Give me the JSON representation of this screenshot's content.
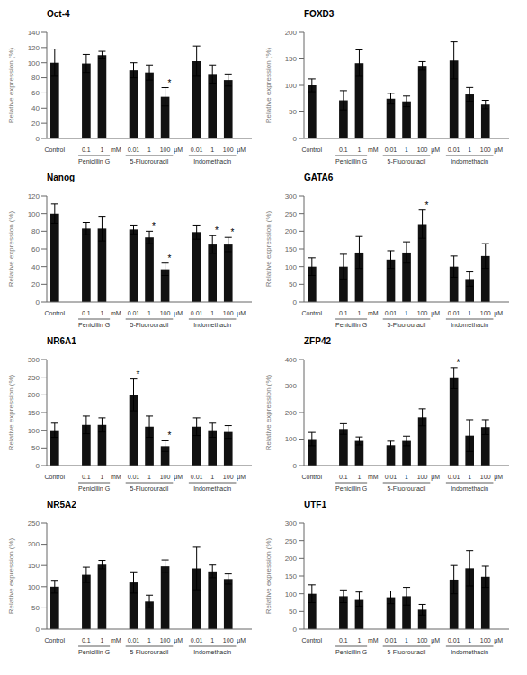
{
  "chart_data": [
    {
      "type": "bar",
      "title": "Oct-4",
      "ylabel": "Relative expression (%)",
      "categories": [
        "Control",
        "0.1",
        "1",
        "0.01",
        "1",
        "100",
        "0.01",
        "1",
        "100"
      ],
      "values": [
        100,
        99,
        110,
        90,
        87,
        55,
        102,
        85,
        77
      ],
      "errors": [
        18,
        12,
        5,
        10,
        10,
        12,
        20,
        12,
        8
      ],
      "annotations": [
        {
          "text": "*",
          "index": 5
        }
      ],
      "groups": [
        {
          "label": "Penicillin G",
          "unit": "mM",
          "start": 1,
          "end": 2
        },
        {
          "label": "5-Fluorouracil",
          "unit": "μM",
          "start": 3,
          "end": 5
        },
        {
          "label": "Indomethacin",
          "unit": "μM",
          "start": 6,
          "end": 8
        }
      ],
      "ylim": [
        0,
        140
      ],
      "yticks": [
        0,
        20,
        40,
        60,
        80,
        100,
        120,
        140
      ],
      "color": "#111111",
      "grid": false
    },
    {
      "type": "bar",
      "title": "FOXD3",
      "ylabel": "Relative expression (%)",
      "categories": [
        "Control",
        "0.1",
        "1",
        "0.01",
        "1",
        "100",
        "0.01",
        "1",
        "100"
      ],
      "values": [
        100,
        72,
        142,
        75,
        70,
        137,
        147,
        83,
        64
      ],
      "errors": [
        12,
        18,
        25,
        10,
        10,
        8,
        35,
        13,
        8
      ],
      "groups": [
        {
          "label": "Penicillin G",
          "unit": "mM",
          "start": 1,
          "end": 2
        },
        {
          "label": "5-Fluorouracil",
          "unit": "μM",
          "start": 3,
          "end": 5
        },
        {
          "label": "Indomethacin",
          "unit": "μM",
          "start": 6,
          "end": 8
        }
      ],
      "ylim": [
        0,
        200
      ],
      "yticks": [
        0,
        50,
        100,
        150,
        200
      ],
      "color": "#111111",
      "grid": false
    },
    {
      "type": "bar",
      "title": "Nanog",
      "ylabel": "Relative expression (%)",
      "categories": [
        "Control",
        "0.1",
        "1",
        "0.01",
        "1",
        "100",
        "0.01",
        "1",
        "100"
      ],
      "values": [
        100,
        83,
        83,
        82,
        73,
        37,
        79,
        65,
        65
      ],
      "errors": [
        11,
        7,
        14,
        5,
        7,
        7,
        8,
        10,
        8
      ],
      "annotations": [
        {
          "text": "*",
          "index": 4
        },
        {
          "text": "*",
          "index": 5
        },
        {
          "text": "*",
          "index": 7
        },
        {
          "text": "*",
          "index": 8
        }
      ],
      "groups": [
        {
          "label": "Penicillin G",
          "unit": "mM",
          "start": 1,
          "end": 2
        },
        {
          "label": "5-Fluorouracil",
          "unit": "μM",
          "start": 3,
          "end": 5
        },
        {
          "label": "Indomethacin",
          "unit": "μM",
          "start": 6,
          "end": 8
        }
      ],
      "ylim": [
        0,
        120
      ],
      "yticks": [
        0,
        20,
        40,
        60,
        80,
        100,
        120
      ],
      "color": "#111111",
      "grid": false
    },
    {
      "type": "bar",
      "title": "GATA6",
      "ylabel": "Relative expression (%)",
      "categories": [
        "Control",
        "0.1",
        "1",
        "0.01",
        "1",
        "100",
        "0.01",
        "1",
        "100"
      ],
      "values": [
        100,
        100,
        140,
        120,
        140,
        220,
        100,
        65,
        130
      ],
      "errors": [
        25,
        35,
        45,
        25,
        30,
        40,
        30,
        20,
        35
      ],
      "annotations": [
        {
          "text": "*",
          "index": 5
        }
      ],
      "groups": [
        {
          "label": "Penicillin G",
          "unit": "mM",
          "start": 1,
          "end": 2
        },
        {
          "label": "5-Fluorouracil",
          "unit": "μM",
          "start": 3,
          "end": 5
        },
        {
          "label": "Indomethacin",
          "unit": "μM",
          "start": 6,
          "end": 8
        }
      ],
      "ylim": [
        0,
        300
      ],
      "yticks": [
        0,
        50,
        100,
        150,
        200,
        250,
        300
      ],
      "color": "#111111",
      "grid": false
    },
    {
      "type": "bar",
      "title": "NR6A1",
      "ylabel": "Relative expression (%)",
      "categories": [
        "Control",
        "0.1",
        "1",
        "0.01",
        "1",
        "100",
        "0.01",
        "1",
        "100"
      ],
      "values": [
        100,
        115,
        115,
        200,
        110,
        55,
        110,
        100,
        95
      ],
      "errors": [
        20,
        25,
        20,
        45,
        30,
        15,
        25,
        20,
        18
      ],
      "annotations": [
        {
          "text": "*",
          "index": 3
        },
        {
          "text": "*",
          "index": 5
        }
      ],
      "groups": [
        {
          "label": "Penicillin G",
          "unit": "mM",
          "start": 1,
          "end": 2
        },
        {
          "label": "5-Fluorouracil",
          "unit": "μM",
          "start": 3,
          "end": 5
        },
        {
          "label": "Indomethacin",
          "unit": "μM",
          "start": 6,
          "end": 8
        }
      ],
      "ylim": [
        0,
        300
      ],
      "yticks": [
        0,
        50,
        100,
        150,
        200,
        250,
        300
      ],
      "color": "#111111",
      "grid": false
    },
    {
      "type": "bar",
      "title": "ZFP42",
      "ylabel": "Relative expression (%)",
      "categories": [
        "Control",
        "0.1",
        "1",
        "0.01",
        "1",
        "100",
        "0.01",
        "1",
        "100"
      ],
      "values": [
        100,
        138,
        93,
        77,
        93,
        182,
        330,
        113,
        145
      ],
      "errors": [
        25,
        20,
        15,
        15,
        18,
        32,
        40,
        60,
        28
      ],
      "annotations": [
        {
          "text": "*",
          "index": 6
        }
      ],
      "groups": [
        {
          "label": "Penicillin G",
          "unit": "mM",
          "start": 1,
          "end": 2
        },
        {
          "label": "5-Fluorouracil",
          "unit": "μM",
          "start": 3,
          "end": 5
        },
        {
          "label": "Indomethacin",
          "unit": "μM",
          "start": 6,
          "end": 8
        }
      ],
      "ylim": [
        0,
        400
      ],
      "yticks": [
        0,
        100,
        200,
        300,
        400
      ],
      "color": "#111111",
      "grid": false
    },
    {
      "type": "bar",
      "title": "NR5A2",
      "ylabel": "Relative expression (%)",
      "categories": [
        "Control",
        "0.1",
        "1",
        "0.01",
        "1",
        "100",
        "0.01",
        "1",
        "100"
      ],
      "values": [
        100,
        128,
        152,
        110,
        65,
        148,
        143,
        136,
        118
      ],
      "errors": [
        15,
        18,
        10,
        25,
        15,
        15,
        50,
        15,
        12
      ],
      "groups": [
        {
          "label": "Penicillin G",
          "unit": "mM",
          "start": 1,
          "end": 2
        },
        {
          "label": "5-Fluorouracil",
          "unit": "μM",
          "start": 3,
          "end": 5
        },
        {
          "label": "Indomethacin",
          "unit": "μM",
          "start": 6,
          "end": 8
        }
      ],
      "ylim": [
        0,
        250
      ],
      "yticks": [
        0,
        50,
        100,
        150,
        200,
        250
      ],
      "color": "#111111",
      "grid": false
    },
    {
      "type": "bar",
      "title": "UTF1",
      "ylabel": "Relative expression (%)",
      "categories": [
        "Control",
        "0.1",
        "1",
        "0.01",
        "1",
        "100",
        "0.01",
        "1",
        "100"
      ],
      "values": [
        100,
        93,
        85,
        90,
        93,
        55,
        140,
        172,
        148
      ],
      "errors": [
        25,
        18,
        20,
        18,
        25,
        15,
        40,
        50,
        30
      ],
      "groups": [
        {
          "label": "Penicillin G",
          "unit": "mM",
          "start": 1,
          "end": 2
        },
        {
          "label": "5-Fluorouracil",
          "unit": "μM",
          "start": 3,
          "end": 5
        },
        {
          "label": "Indomethacin",
          "unit": "μM",
          "start": 6,
          "end": 8
        }
      ],
      "ylim": [
        0,
        300
      ],
      "yticks": [
        0,
        50,
        100,
        150,
        200,
        250,
        300
      ],
      "color": "#111111",
      "grid": false
    }
  ]
}
